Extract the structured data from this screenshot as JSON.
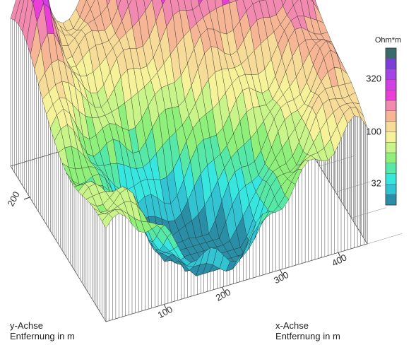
{
  "chart_data": {
    "type": "surface3d",
    "colorbar": {
      "unit_label": "Ohm*m",
      "tick_labels": [
        "320",
        "100",
        "32"
      ],
      "colors": [
        "#2a8fa6",
        "#33c4d4",
        "#38e6e0",
        "#55e8a6",
        "#8ef07a",
        "#c8f48a",
        "#f6f29a",
        "#f6dc98",
        "#f6b696",
        "#f28ab0",
        "#ea3fd6",
        "#d23fe6",
        "#a244e6",
        "#7c3ed8",
        "#3a6b6b"
      ]
    },
    "x_axis": {
      "label_lines": [
        "x-Achse",
        "Entfernung in m"
      ],
      "ticks": [
        100,
        200,
        300,
        400
      ],
      "range": [
        0,
        450
      ]
    },
    "y_axis": {
      "label_lines": [
        "y-Achse",
        "Entfernung in m"
      ],
      "ticks": [
        200
      ],
      "range": [
        0,
        250
      ]
    },
    "z_log10_range": [
      1.3,
      2.8
    ],
    "surface_features": {
      "peak_log10": 2.75,
      "trough_log10": 1.35,
      "left_ridge_log10": 2.55
    }
  }
}
